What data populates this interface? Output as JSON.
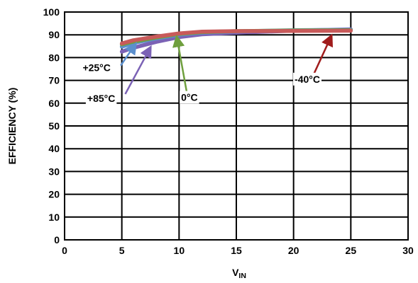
{
  "chart_data": {
    "type": "line",
    "xlabel": "V",
    "xlabel_sub": "IN",
    "ylabel": "EFFICIENCY (%)",
    "xlim": [
      0,
      30
    ],
    "ylim": [
      0,
      100
    ],
    "xticks": [
      0,
      5,
      10,
      15,
      20,
      25,
      30
    ],
    "yticks": [
      0,
      10,
      20,
      30,
      40,
      50,
      60,
      70,
      80,
      90,
      100
    ],
    "grid": true,
    "series": [
      {
        "name": "+85°C",
        "color": "#7b62b5",
        "x": [
          5,
          6,
          8,
          10,
          12,
          15,
          20,
          25
        ],
        "y": [
          82.6,
          84.3,
          86.9,
          89.0,
          90.2,
          90.9,
          91.8,
          92.4
        ]
      },
      {
        "name": "+25°C",
        "color": "#5b8fcd",
        "x": [
          5,
          6,
          8,
          10,
          12,
          15,
          20,
          25
        ],
        "y": [
          84.8,
          86.4,
          88.4,
          90.1,
          91.0,
          91.5,
          92.0,
          92.2
        ]
      },
      {
        "name": "0°C",
        "color": "#6f9f3e",
        "x": [
          5,
          6,
          8,
          10,
          12,
          15,
          20,
          25
        ],
        "y": [
          85.8,
          87.0,
          88.8,
          90.4,
          91.2,
          91.6,
          91.9,
          92.0
        ]
      },
      {
        "name": "-40°C",
        "color": "#c85a5a",
        "x": [
          5,
          6,
          8,
          10,
          12,
          15,
          20,
          25
        ],
        "y": [
          86.2,
          87.6,
          89.2,
          90.6,
          91.4,
          91.6,
          91.7,
          91.8
        ]
      }
    ],
    "annotations": [
      {
        "text": "+25°C",
        "label_x": 2.8,
        "label_y": 74.0,
        "arrow_color": "#5b8fcd",
        "tail_x": 4.9,
        "tail_y": 76.5,
        "head_x": 6.2,
        "head_y": 86.0
      },
      {
        "text": "+85°C",
        "label_x": 3.2,
        "label_y": 60.5,
        "arrow_color": "#7b62b5",
        "tail_x": 5.3,
        "tail_y": 64.0,
        "head_x": 7.5,
        "head_y": 84.5
      },
      {
        "text": "0°C",
        "label_x": 10.9,
        "label_y": 61.0,
        "arrow_color": "#6f9f3e",
        "tail_x": 10.7,
        "tail_y": 64.0,
        "head_x": 9.8,
        "head_y": 89.0
      },
      {
        "text": "-40°C",
        "label_x": 21.2,
        "label_y": 69.0,
        "arrow_color": "#a01c1c",
        "tail_x": 21.7,
        "tail_y": 72.0,
        "head_x": 23.3,
        "head_y": 89.5
      }
    ]
  }
}
